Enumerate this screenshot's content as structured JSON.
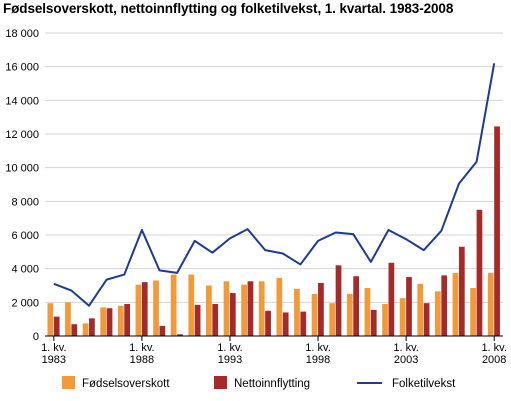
{
  "chart_data": {
    "type": "bar",
    "title": "Fødselsoverskott, nettoinnflytting og folketilvekst, 1. kvartal. 1983-2008",
    "xlabel": "",
    "ylabel": "",
    "ylim": [
      0,
      18000
    ],
    "yticks": [
      0,
      2000,
      4000,
      6000,
      8000,
      10000,
      12000,
      14000,
      16000,
      18000
    ],
    "ytick_labels": [
      "0",
      "2 000",
      "4 000",
      "6 000",
      "8 000",
      "10 000",
      "12 000",
      "14 000",
      "16 000",
      "18 000"
    ],
    "categories": [
      1983,
      1984,
      1985,
      1986,
      1987,
      1988,
      1989,
      1990,
      1991,
      1992,
      1993,
      1994,
      1995,
      1996,
      1997,
      1998,
      1999,
      2000,
      2001,
      2002,
      2003,
      2004,
      2005,
      2006,
      2007,
      2008
    ],
    "x_tick_labels": [
      {
        "category": 1983,
        "line1": "1. kv.",
        "line2": "1983"
      },
      {
        "category": 1988,
        "line1": "1. kv.",
        "line2": "1988"
      },
      {
        "category": 1993,
        "line1": "1. kv.",
        "line2": "1993"
      },
      {
        "category": 1998,
        "line1": "1. kv.",
        "line2": "1998"
      },
      {
        "category": 2003,
        "line1": "1. kv.",
        "line2": "2003"
      },
      {
        "category": 2008,
        "line1": "1. kv.",
        "line2": "2008"
      }
    ],
    "grid": "horizontal",
    "legend_position": "bottom",
    "series": [
      {
        "name": "Fødselsoverskott",
        "kind": "bar",
        "color": "#f29a3a",
        "values": [
          1950,
          2000,
          750,
          1700,
          1800,
          3050,
          3300,
          3650,
          3650,
          3000,
          3250,
          3050,
          3250,
          3450,
          2800,
          2500,
          1950,
          2500,
          2850,
          1900,
          2250,
          3100,
          2650,
          3750,
          2850,
          3750
        ]
      },
      {
        "name": "Nettoinnflytting",
        "kind": "bar",
        "color": "#a52a2a",
        "values": [
          1150,
          700,
          1050,
          1650,
          1900,
          3200,
          600,
          100,
          1850,
          1900,
          2550,
          3250,
          1500,
          1400,
          1450,
          3150,
          4200,
          3550,
          1550,
          4350,
          3500,
          1950,
          3600,
          5300,
          7500,
          12450
        ]
      },
      {
        "name": "Folketilvekst",
        "kind": "line",
        "color": "#1f3a93",
        "values": [
          3100,
          2700,
          1800,
          3350,
          3650,
          6300,
          3900,
          3750,
          5650,
          4950,
          5800,
          6350,
          5100,
          4900,
          4250,
          5650,
          6150,
          6050,
          4400,
          6300,
          5750,
          5100,
          6250,
          9050,
          10350,
          16200
        ]
      }
    ]
  }
}
